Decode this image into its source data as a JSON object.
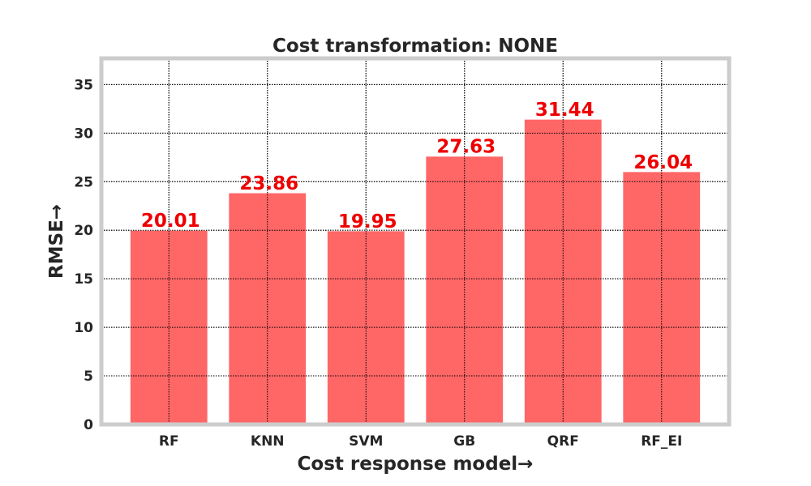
{
  "chart_data": {
    "type": "bar",
    "title": "Cost transformation: NONE",
    "xlabel": "Cost response model→",
    "ylabel": "RMSE→",
    "categories": [
      "RF",
      "KNN",
      "SVM",
      "GB",
      "QRF",
      "RF_EI"
    ],
    "values": [
      20.01,
      23.86,
      19.95,
      27.63,
      31.44,
      26.04
    ],
    "value_labels": [
      "20.01",
      "23.86",
      "19.95",
      "27.63",
      "31.44",
      "26.04"
    ],
    "ylim": [
      0,
      37.7
    ],
    "yticks": [
      0,
      5,
      10,
      15,
      20,
      25,
      30,
      35
    ],
    "grid": true,
    "legend": "none",
    "bar_color": "#ff6666",
    "value_label_color": "#ee0000",
    "frame_color": "#cccccc"
  }
}
